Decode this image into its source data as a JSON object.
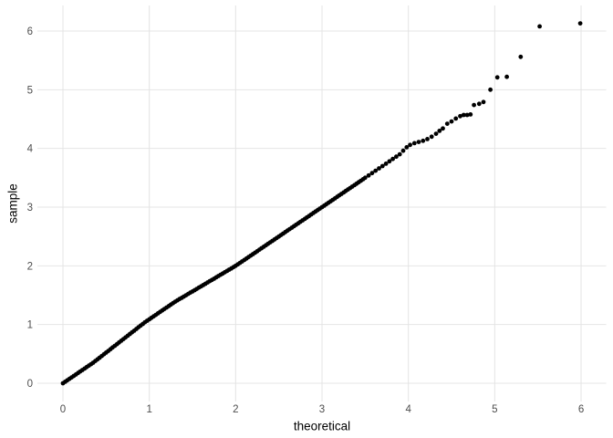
{
  "figure": {
    "background": "#ffffff",
    "title": ""
  },
  "chart_data": {
    "type": "scatter",
    "title": "",
    "xlabel": "theoretical",
    "ylabel": "sample",
    "xlim": [
      -0.3,
      6.3
    ],
    "ylim": [
      -0.3,
      6.45
    ],
    "x_ticks": [
      0,
      1,
      2,
      3,
      4,
      5,
      6
    ],
    "y_ticks": [
      0,
      1,
      2,
      3,
      4,
      5,
      6
    ],
    "grid": "major-only",
    "legend_position": "none",
    "description": "Q-Q plot; sample quantiles vs theoretical quantiles; points hug the y=x line, upper tail deviates above",
    "style": {
      "grid_color": "#e4e4e4",
      "tick_label_color": "#4d4d4d",
      "axis_title_color": "#000000",
      "point_color": "#000000",
      "point_radius_px": 2.4,
      "background": "#ffffff"
    },
    "points": [
      [
        0,
        0
      ],
      [
        0.025,
        0.025
      ],
      [
        0.05,
        0.05
      ],
      [
        0.075,
        0.075
      ],
      [
        0.1,
        0.1
      ],
      [
        0.125,
        0.125
      ],
      [
        0.15,
        0.15
      ],
      [
        0.175,
        0.175
      ],
      [
        0.2,
        0.2
      ],
      [
        0.225,
        0.225
      ],
      [
        0.25,
        0.25
      ],
      [
        0.275,
        0.275
      ],
      [
        0.3,
        0.3
      ],
      [
        0.325,
        0.325
      ],
      [
        0.35,
        0.35
      ],
      [
        0.375,
        0.379
      ],
      [
        0.4,
        0.408
      ],
      [
        0.425,
        0.436
      ],
      [
        0.45,
        0.465
      ],
      [
        0.475,
        0.494
      ],
      [
        0.5,
        0.523
      ],
      [
        0.525,
        0.551
      ],
      [
        0.55,
        0.58
      ],
      [
        0.575,
        0.609
      ],
      [
        0.6,
        0.638
      ],
      [
        0.625,
        0.666
      ],
      [
        0.65,
        0.695
      ],
      [
        0.675,
        0.724
      ],
      [
        0.7,
        0.753
      ],
      [
        0.725,
        0.781
      ],
      [
        0.75,
        0.81
      ],
      [
        0.775,
        0.839
      ],
      [
        0.8,
        0.868
      ],
      [
        0.825,
        0.896
      ],
      [
        0.85,
        0.925
      ],
      [
        0.875,
        0.954
      ],
      [
        0.9,
        0.983
      ],
      [
        0.925,
        1.011
      ],
      [
        0.95,
        1.04
      ],
      [
        0.975,
        1.065
      ],
      [
        1,
        1.09
      ],
      [
        1.025,
        1.115
      ],
      [
        1.05,
        1.14
      ],
      [
        1.075,
        1.165
      ],
      [
        1.1,
        1.19
      ],
      [
        1.125,
        1.215
      ],
      [
        1.15,
        1.24
      ],
      [
        1.175,
        1.265
      ],
      [
        1.2,
        1.29
      ],
      [
        1.225,
        1.315
      ],
      [
        1.25,
        1.34
      ],
      [
        1.275,
        1.365
      ],
      [
        1.3,
        1.39
      ],
      [
        1.325,
        1.412
      ],
      [
        1.35,
        1.434
      ],
      [
        1.375,
        1.455
      ],
      [
        1.4,
        1.477
      ],
      [
        1.425,
        1.499
      ],
      [
        1.45,
        1.521
      ],
      [
        1.475,
        1.543
      ],
      [
        1.5,
        1.564
      ],
      [
        1.525,
        1.586
      ],
      [
        1.55,
        1.608
      ],
      [
        1.575,
        1.63
      ],
      [
        1.6,
        1.651
      ],
      [
        1.625,
        1.673
      ],
      [
        1.65,
        1.695
      ],
      [
        1.675,
        1.717
      ],
      [
        1.7,
        1.739
      ],
      [
        1.725,
        1.76
      ],
      [
        1.75,
        1.782
      ],
      [
        1.775,
        1.804
      ],
      [
        1.8,
        1.826
      ],
      [
        1.825,
        1.848
      ],
      [
        1.85,
        1.869
      ],
      [
        1.875,
        1.891
      ],
      [
        1.9,
        1.913
      ],
      [
        1.925,
        1.935
      ],
      [
        1.95,
        1.956
      ],
      [
        1.975,
        1.978
      ],
      [
        2,
        2
      ],
      [
        2.025,
        2.025
      ],
      [
        2.05,
        2.05
      ],
      [
        2.075,
        2.075
      ],
      [
        2.1,
        2.1
      ],
      [
        2.125,
        2.125
      ],
      [
        2.15,
        2.15
      ],
      [
        2.175,
        2.175
      ],
      [
        2.2,
        2.2
      ],
      [
        2.225,
        2.225
      ],
      [
        2.25,
        2.25
      ],
      [
        2.275,
        2.275
      ],
      [
        2.3,
        2.3
      ],
      [
        2.325,
        2.325
      ],
      [
        2.35,
        2.35
      ],
      [
        2.375,
        2.375
      ],
      [
        2.4,
        2.4
      ],
      [
        2.425,
        2.425
      ],
      [
        2.45,
        2.45
      ],
      [
        2.475,
        2.475
      ],
      [
        2.5,
        2.5
      ],
      [
        2.525,
        2.525
      ],
      [
        2.55,
        2.55
      ],
      [
        2.575,
        2.575
      ],
      [
        2.6,
        2.6
      ],
      [
        2.625,
        2.625
      ],
      [
        2.65,
        2.65
      ],
      [
        2.675,
        2.675
      ],
      [
        2.7,
        2.7
      ],
      [
        2.725,
        2.725
      ],
      [
        2.75,
        2.75
      ],
      [
        2.775,
        2.775
      ],
      [
        2.8,
        2.8
      ],
      [
        2.825,
        2.825
      ],
      [
        2.85,
        2.85
      ],
      [
        2.875,
        2.875
      ],
      [
        2.9,
        2.9
      ],
      [
        2.925,
        2.925
      ],
      [
        2.95,
        2.95
      ],
      [
        2.975,
        2.975
      ],
      [
        3,
        3
      ],
      [
        3.025,
        3.025
      ],
      [
        3.05,
        3.05
      ],
      [
        3.075,
        3.075
      ],
      [
        3.1,
        3.1
      ],
      [
        3.125,
        3.125
      ],
      [
        3.15,
        3.15
      ],
      [
        3.175,
        3.175
      ],
      [
        3.2,
        3.2
      ],
      [
        3.225,
        3.225
      ],
      [
        3.25,
        3.25
      ],
      [
        3.275,
        3.275
      ],
      [
        3.3,
        3.3
      ],
      [
        3.325,
        3.325
      ],
      [
        3.35,
        3.35
      ],
      [
        3.375,
        3.375
      ],
      [
        3.4,
        3.4
      ],
      [
        3.425,
        3.425
      ],
      [
        3.45,
        3.45
      ],
      [
        3.475,
        3.475
      ],
      [
        3.5,
        3.5
      ],
      [
        3.54,
        3.54
      ],
      [
        3.58,
        3.58
      ],
      [
        3.62,
        3.62
      ],
      [
        3.66,
        3.66
      ],
      [
        3.7,
        3.7
      ],
      [
        3.74,
        3.74
      ],
      [
        3.78,
        3.78
      ],
      [
        3.82,
        3.82
      ],
      [
        3.86,
        3.86
      ],
      [
        3.9,
        3.9
      ],
      [
        3.94,
        3.96
      ],
      [
        3.98,
        4.02
      ],
      [
        4.02,
        4.06
      ],
      [
        4.07,
        4.09
      ],
      [
        4.12,
        4.11
      ],
      [
        4.17,
        4.13
      ],
      [
        4.22,
        4.16
      ],
      [
        4.27,
        4.2
      ],
      [
        4.32,
        4.25
      ],
      [
        4.36,
        4.3
      ],
      [
        4.4,
        4.34
      ],
      [
        4.45,
        4.42
      ],
      [
        4.5,
        4.46
      ],
      [
        4.55,
        4.51
      ],
      [
        4.6,
        4.55
      ],
      [
        4.64,
        4.57
      ],
      [
        4.68,
        4.57
      ],
      [
        4.72,
        4.58
      ],
      [
        4.76,
        4.74
      ],
      [
        4.82,
        4.76
      ],
      [
        4.87,
        4.79
      ],
      [
        4.95,
        5.0
      ],
      [
        5.03,
        5.21
      ],
      [
        5.14,
        5.22
      ],
      [
        5.3,
        5.56
      ],
      [
        5.52,
        6.08
      ],
      [
        5.99,
        6.13
      ]
    ]
  }
}
